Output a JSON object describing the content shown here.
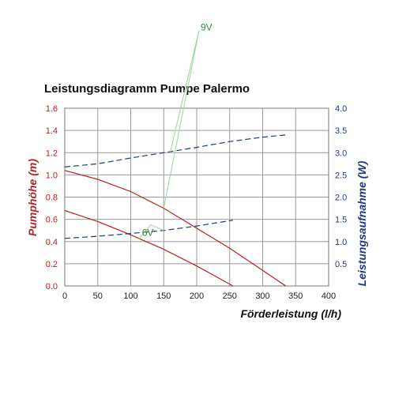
{
  "chart_data": {
    "type": "line",
    "title": "Leistungsdiagramm Pumpe Palermo",
    "xlabel": "Förderleistung (l/h)",
    "ylabel": "Pumphöhe (m)",
    "y2label": "Leistungsaufnahme (W)",
    "xlim": [
      0,
      400
    ],
    "ylim": [
      0,
      1.6
    ],
    "y2lim": [
      0,
      4.0
    ],
    "x_ticks": [
      "0",
      "50",
      "100",
      "150",
      "200",
      "250",
      "300",
      "350",
      "400"
    ],
    "y_ticks": [
      "0.0",
      "0.2",
      "0.4",
      "0.6",
      "0.8",
      "1.0",
      "1.2",
      "1.4",
      "1.6"
    ],
    "y2_ticks": [
      "0.5",
      "1.0",
      "1.5",
      "2.0",
      "2.5",
      "3.0",
      "3.5",
      "4.0"
    ],
    "grid": true,
    "series": [
      {
        "axis": "left",
        "style": "solid",
        "color": "#b22222",
        "x": [
          0,
          50,
          100,
          150,
          200,
          250,
          300,
          335
        ],
        "y": [
          1.04,
          0.96,
          0.85,
          0.7,
          0.52,
          0.34,
          0.14,
          0.0
        ]
      },
      {
        "axis": "left",
        "style": "solid",
        "color": "#b22222",
        "x": [
          0,
          50,
          100,
          150,
          200,
          240,
          255
        ],
        "y": [
          0.68,
          0.58,
          0.46,
          0.33,
          0.18,
          0.05,
          0.0
        ]
      },
      {
        "axis": "right",
        "style": "dashed",
        "color": "#1f3a7a",
        "x": [
          0,
          50,
          100,
          150,
          200,
          250,
          300,
          335
        ],
        "y": [
          2.68,
          2.75,
          2.88,
          3.0,
          3.12,
          3.25,
          3.35,
          3.4
        ]
      },
      {
        "axis": "right",
        "style": "dashed",
        "color": "#1f3a7a",
        "x": [
          0,
          50,
          100,
          150,
          200,
          255
        ],
        "y": [
          1.07,
          1.12,
          1.18,
          1.25,
          1.35,
          1.48
        ]
      }
    ],
    "annotations": [
      {
        "text": "9V",
        "color": "#2e8b2e",
        "at": [
          200,
          2.33
        ],
        "left_point": [
          150,
          0.7
        ],
        "right_point": [
          160,
          3.02
        ]
      },
      {
        "text": "6V",
        "color": "#2e8b2e",
        "at": [
          123,
          0.48
        ],
        "left_point": [
          112,
          0.42
        ],
        "right_point": [
          150,
          1.25
        ]
      }
    ]
  }
}
